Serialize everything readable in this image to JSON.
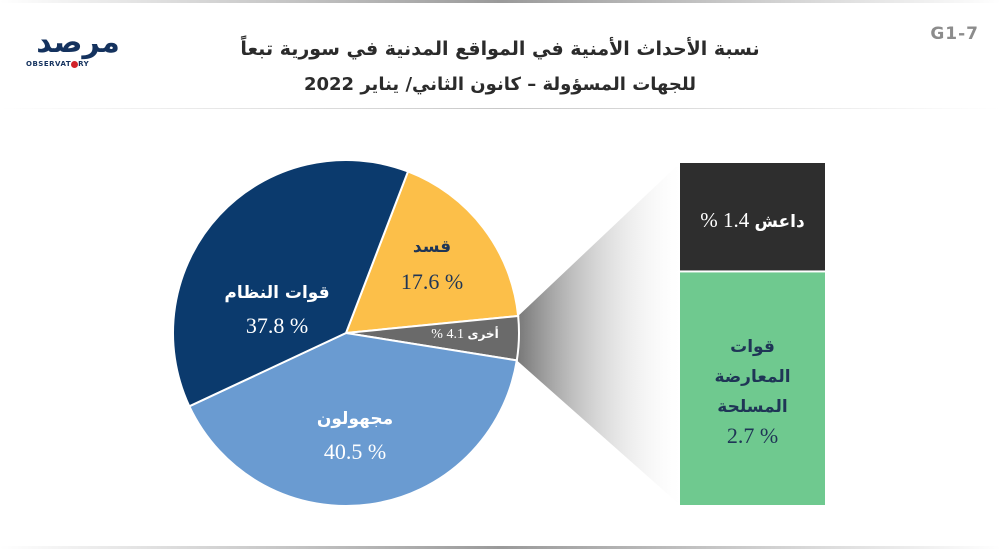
{
  "header": {
    "code": "G1-7",
    "title_line1": "نسبة الأحداث الأمنية في المواقع المدنية في سورية تبعاً",
    "title_line2": "للجهات المسؤولة – كانون الثاني/ يناير 2022",
    "logo_text": "مرصد",
    "logo_sub_left": "OBSERVAT",
    "logo_sub_right": "RY"
  },
  "colors": {
    "regime": "#0b3a6d",
    "sdf": "#fcbf49",
    "others": "#6a6a6a",
    "unknown": "#6a9bd1",
    "isis": "#2e2e2e",
    "opposition": "#6fc98f"
  },
  "chart_data": {
    "type": "pie",
    "unit": "%",
    "slices": [
      {
        "name": "قسد",
        "value": 17.6,
        "label": "% 17.6"
      },
      {
        "name": "أخرى",
        "value": 4.1,
        "label": "% 4.1"
      },
      {
        "name": "مجهولون",
        "value": 40.5,
        "label": "% 40.5"
      },
      {
        "name": "قوات النظام",
        "value": 37.8,
        "label": "% 37.8"
      }
    ],
    "others_breakdown": [
      {
        "name": "داعش",
        "value": 1.4,
        "label": "% 1.4"
      },
      {
        "name_lines": [
          "قوات",
          "المعارضة",
          "المسلحة"
        ],
        "value": 2.7,
        "label": "% 2.7"
      }
    ]
  }
}
